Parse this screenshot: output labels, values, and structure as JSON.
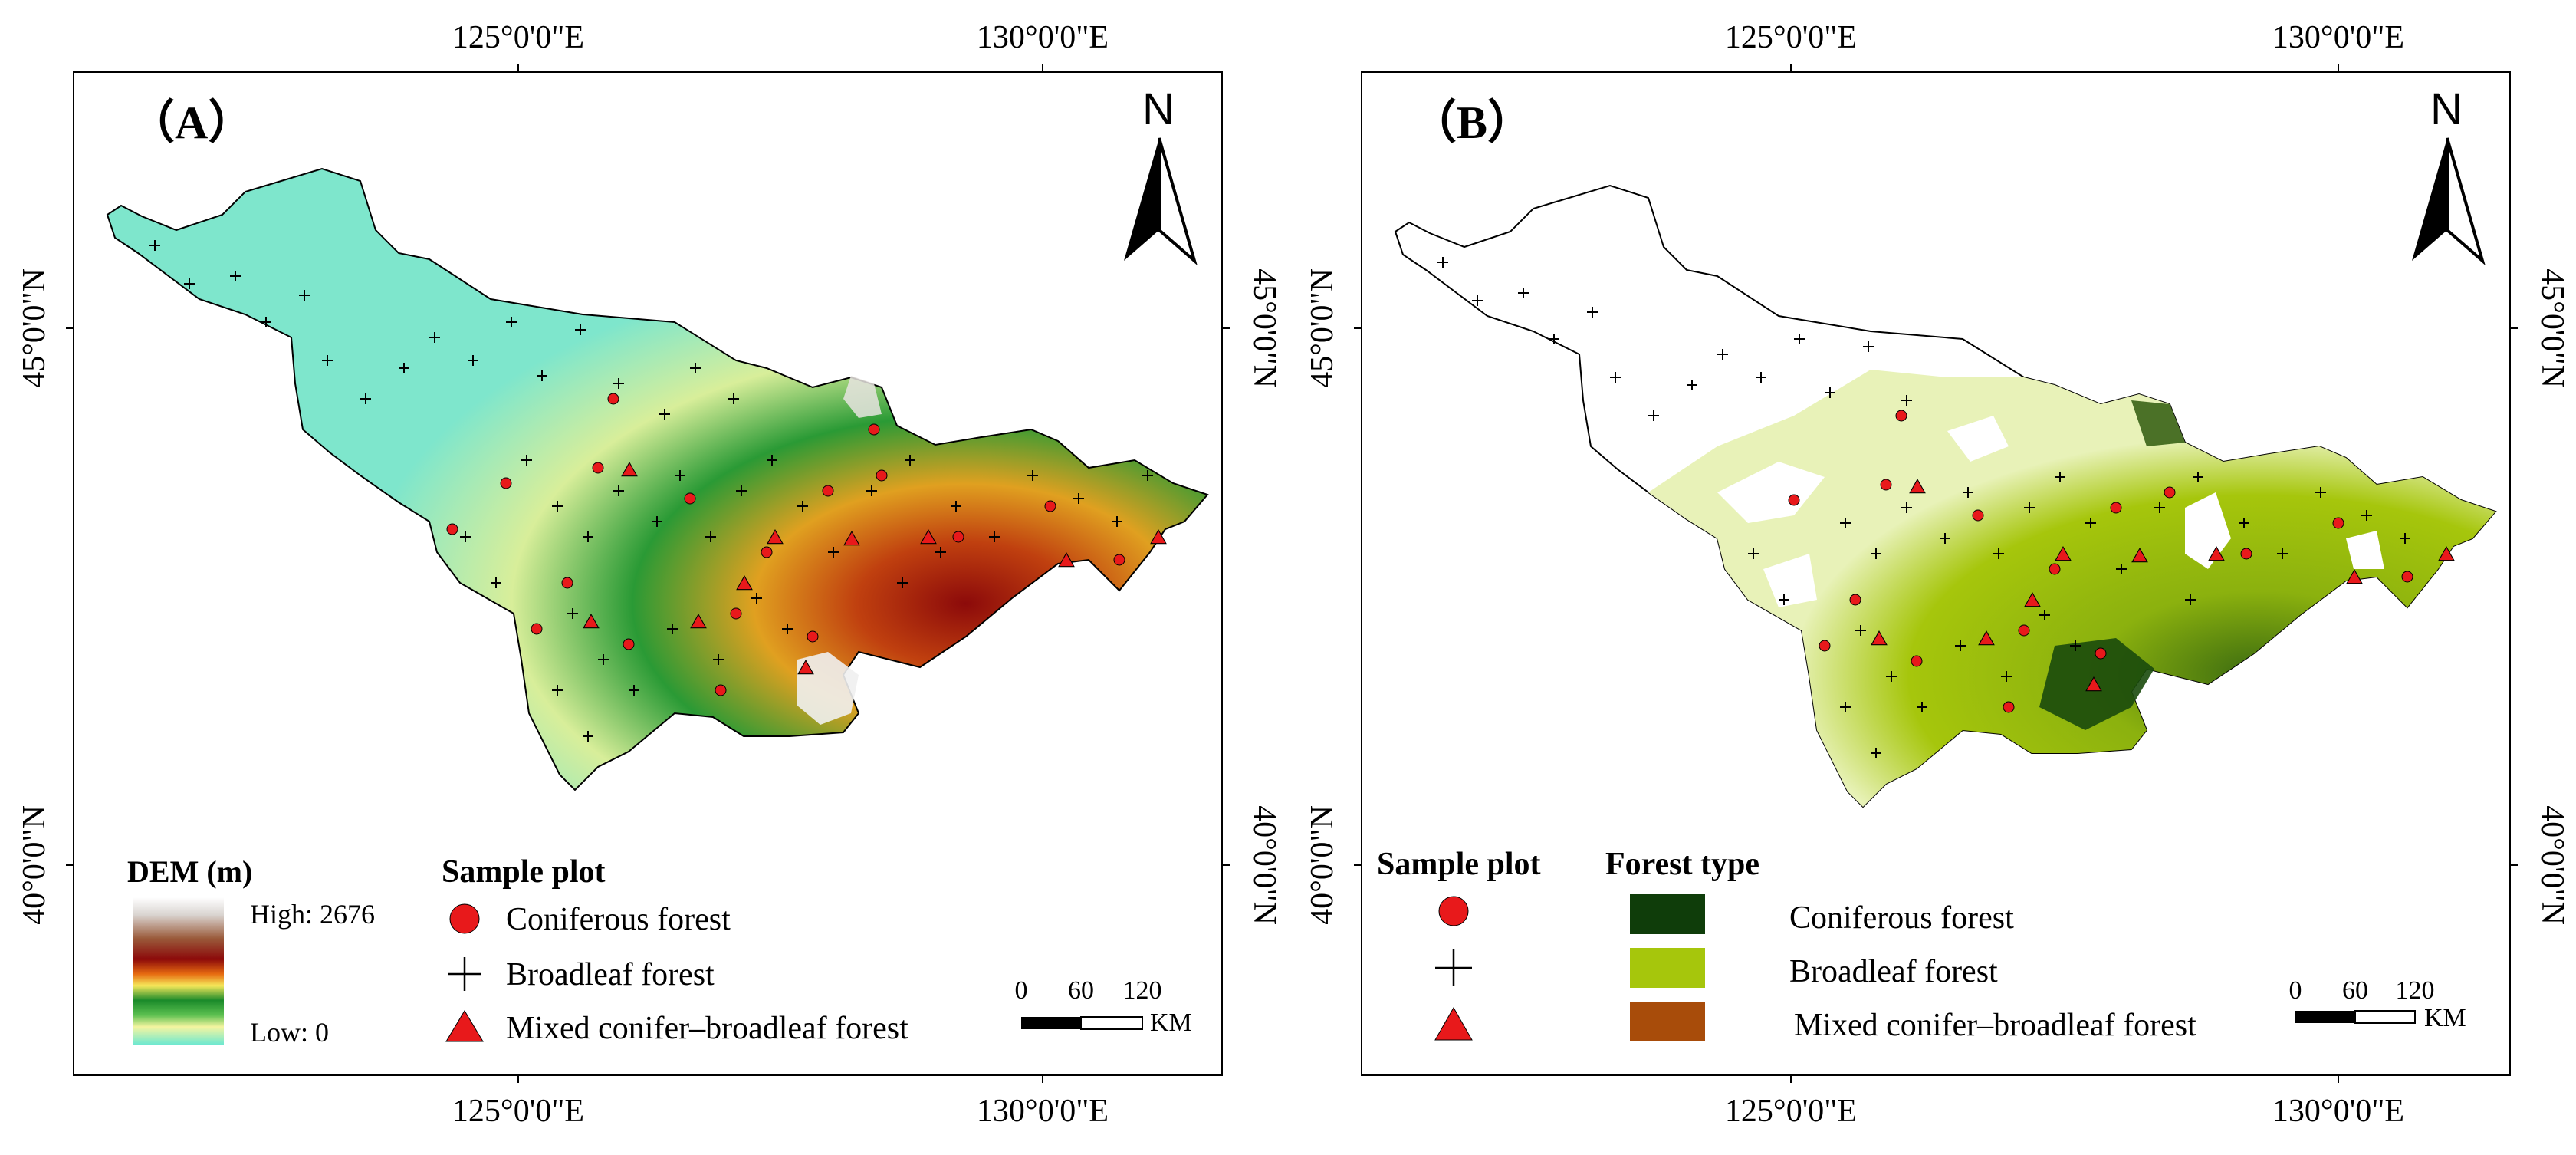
{
  "panels": [
    {
      "id": "A",
      "label": "（A）",
      "lon_labels": [
        "125°0'0\"E",
        "130°0'0\"E"
      ],
      "lat_labels": [
        "45°0'0\"N",
        "40°0'0\"N"
      ],
      "north": "N",
      "legend_dem": {
        "title": "DEM (m)",
        "high": "High: 2676",
        "low": "Low: 0"
      },
      "legend_sample": {
        "title": "Sample plot",
        "items": [
          "Coniferous forest",
          "Broadleaf forest",
          "Mixed conifer–broadleaf forest"
        ]
      },
      "scale": {
        "ticks": [
          "0",
          "60",
          "120"
        ],
        "unit": "KM"
      }
    },
    {
      "id": "B",
      "label": "（B）",
      "lon_labels": [
        "125°0'0\"E",
        "130°0'0\"E"
      ],
      "lat_labels": [
        "45°0'0\"N",
        "40°0'0\"N"
      ],
      "north": "N",
      "legend_sample": {
        "title": "Sample plot"
      },
      "legend_forest": {
        "title": "Forest type",
        "items": [
          {
            "label": "Coniferous forest",
            "color": "#0f3d0a"
          },
          {
            "label": "Broadleaf forest",
            "color": "#a6c60c"
          },
          {
            "label": "Mixed conifer–broadleaf forest",
            "color": "#a84c0a"
          }
        ]
      },
      "scale": {
        "ticks": [
          "0",
          "60",
          "120"
        ],
        "unit": "KM"
      }
    }
  ],
  "colors": {
    "marker_red": "#e8191b",
    "frame": "#000000"
  }
}
